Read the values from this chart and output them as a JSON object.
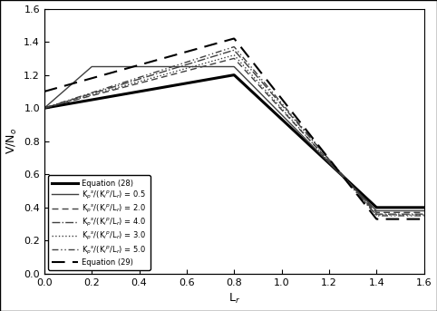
{
  "title": "",
  "xlabel": "L$_r$",
  "ylabel": "V/N$_o$",
  "xlim": [
    0,
    1.6
  ],
  "ylim": [
    0,
    1.6
  ],
  "xticks": [
    0,
    0.2,
    0.4,
    0.6,
    0.8,
    1.0,
    1.2,
    1.4,
    1.6
  ],
  "yticks": [
    0,
    0.2,
    0.4,
    0.6,
    0.8,
    1.0,
    1.2,
    1.4,
    1.6
  ],
  "legend_labels": [
    "Equation (28)",
    "K$_p$$^s$/(K$_i$$^p$/L$_r$) = 0.5",
    "K$_p$$^s$/(K$_i$$^p$/L$_r$) = 2.0",
    "K$_p$$^s$/(K$_i$$^p$/L$_r$) = 4.0",
    "K$_p$$^s$/(K$_i$$^p$/L$_r$) = 3.0",
    "K$_p$$^s$/(K$_i$$^p$/L$_r$) = 5.0",
    "Equation (29)"
  ],
  "eq28": {
    "x": [
      0.0,
      0.8,
      1.4,
      1.6
    ],
    "y": [
      1.0,
      1.2,
      0.4,
      0.4
    ]
  },
  "curve_05": {
    "x": [
      0.0,
      0.2,
      0.8,
      1.4,
      1.6
    ],
    "y": [
      1.0,
      1.25,
      1.25,
      0.38,
      0.38
    ]
  },
  "curve_20": {
    "x": [
      0.0,
      0.8,
      1.4,
      1.6
    ],
    "y": [
      1.0,
      1.3,
      0.37,
      0.37
    ]
  },
  "curve_40": {
    "x": [
      0.0,
      0.8,
      1.4,
      1.6
    ],
    "y": [
      1.0,
      1.35,
      0.36,
      0.36
    ]
  },
  "curve_30": {
    "x": [
      0.0,
      0.8,
      1.4,
      1.6
    ],
    "y": [
      1.0,
      1.32,
      0.355,
      0.355
    ]
  },
  "curve_50": {
    "x": [
      0.0,
      0.8,
      1.4,
      1.6
    ],
    "y": [
      1.0,
      1.37,
      0.35,
      0.35
    ]
  },
  "eq29": {
    "x": [
      0.0,
      0.8,
      1.4,
      1.6
    ],
    "y": [
      1.1,
      1.42,
      0.33,
      0.33
    ]
  },
  "background_color": "#ffffff"
}
